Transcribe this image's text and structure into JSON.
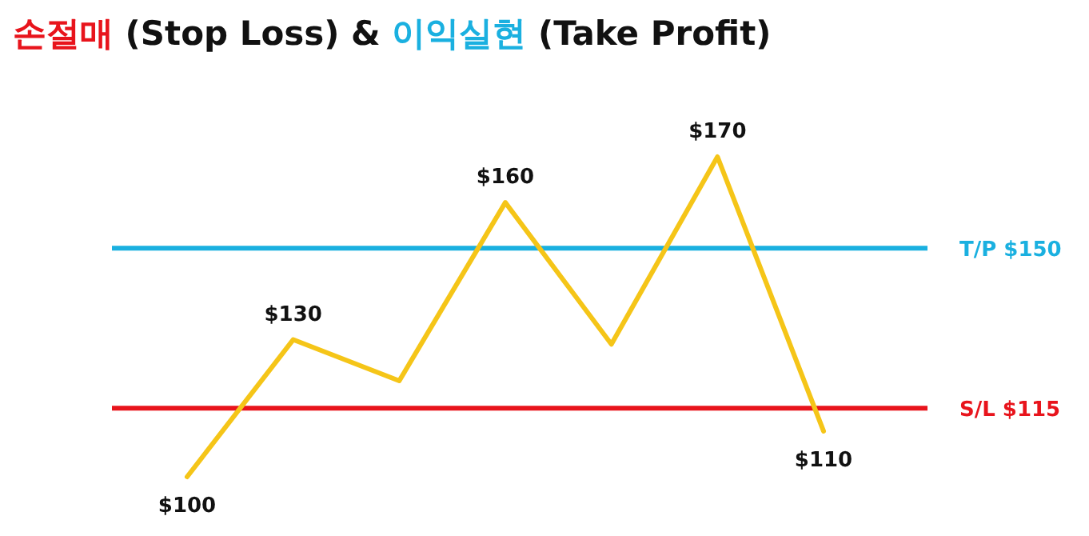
{
  "chart_data": {
    "type": "line",
    "title": "손절매 (Stop Loss) & 이익실현 (Take Profit)",
    "categories": [
      null,
      null,
      null,
      null,
      null,
      null,
      null
    ],
    "series": [
      {
        "color": "#f5c518",
        "values": [
          100,
          130,
          121,
          160,
          129,
          170,
          110
        ],
        "value_labels": [
          "$100",
          "$130",
          null,
          "$160",
          null,
          "$170",
          "$110"
        ]
      }
    ],
    "ref_lines": [
      {
        "axis": "y",
        "value": 150,
        "label": "T/P $150",
        "color": "#1ab0e0"
      },
      {
        "axis": "y",
        "value": 115,
        "label": "S/L $115",
        "color": "#e8141c"
      }
    ]
  }
}
